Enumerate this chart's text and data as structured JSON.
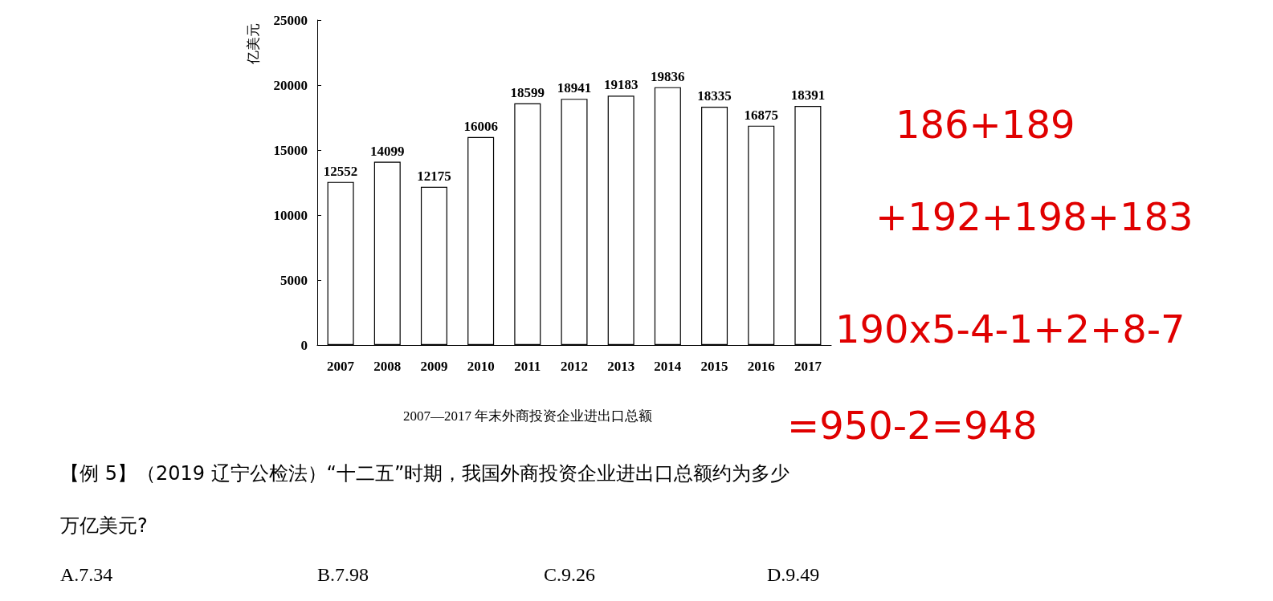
{
  "chart_data": {
    "type": "bar",
    "title": "2007—2017 年末外商投资企业进出口总额",
    "ylabel": "亿美元",
    "categories": [
      "2007",
      "2008",
      "2009",
      "2010",
      "2011",
      "2012",
      "2013",
      "2014",
      "2015",
      "2016",
      "2017"
    ],
    "values": [
      12552,
      14099,
      12175,
      16006,
      18599,
      18941,
      19183,
      19836,
      18335,
      16875,
      18391
    ],
    "color": "#ffffff",
    "ylim": [
      0,
      25000
    ],
    "yticks": [
      0,
      5000,
      10000,
      15000,
      20000,
      25000
    ],
    "grid": false,
    "data_labels": true,
    "annotations": [
      "【例 5】（2019 辽宁公检法）“十二五”时期，我国外商投资企业进出口总额约为多少",
      "万亿美元?",
      "A.7.34",
      "B.7.98",
      "C.9.26",
      "D.9.49",
      "186+189",
      "+192+198+183",
      "190x5-4-1+2+8-7",
      "=950-2=948"
    ]
  }
}
